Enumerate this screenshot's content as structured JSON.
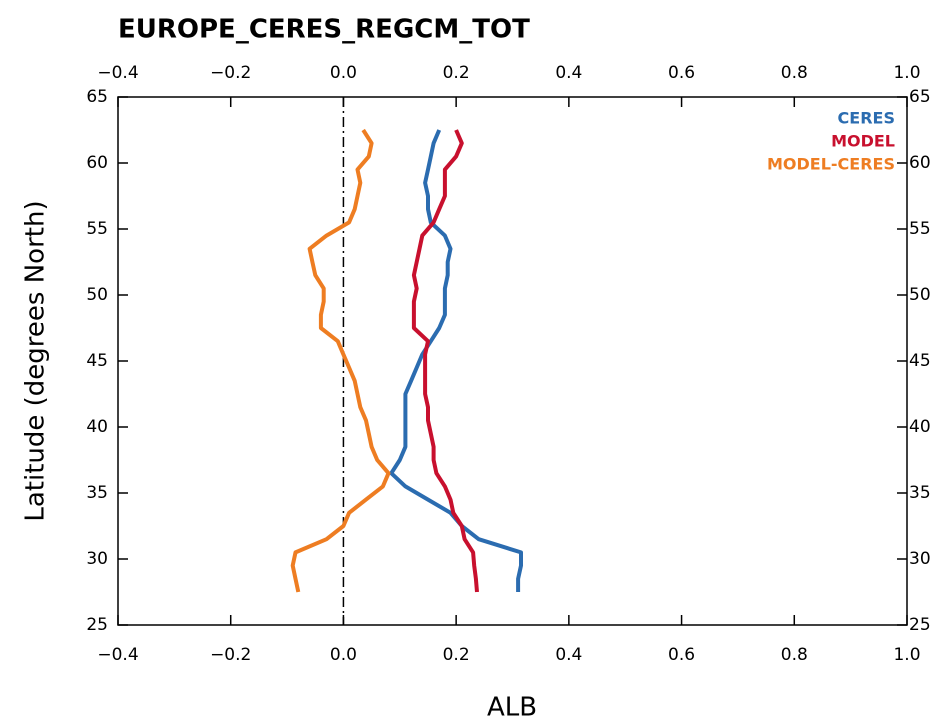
{
  "chart_data": {
    "type": "line",
    "title": "EUROPE_CERES_REGCM_TOT",
    "x_label": "ALB",
    "y_label": "Latitude (degrees North)",
    "xlim": [
      -0.4,
      1.0
    ],
    "xticks": [
      {
        "value": -0.4,
        "label": "−0.4"
      },
      {
        "value": -0.2,
        "label": "−0.2"
      },
      {
        "value": 0,
        "label": "0.0"
      },
      {
        "value": 0.2,
        "label": "0.2"
      },
      {
        "value": 0.4,
        "label": "0.4"
      },
      {
        "value": 0.6,
        "label": "0.6"
      },
      {
        "value": 0.8,
        "label": "0.8"
      },
      {
        "value": 1,
        "label": "1.0"
      }
    ],
    "ylim": [
      25,
      65
    ],
    "yticks": [
      25,
      30,
      35,
      40,
      45,
      50,
      55,
      60,
      65
    ],
    "reference_line": 0,
    "legend": "top-right",
    "latitudes": [
      27.5,
      28.5,
      29.5,
      30.5,
      31.5,
      32.5,
      33.5,
      34.5,
      35.5,
      36.5,
      37.5,
      38.5,
      39.5,
      40.5,
      41.5,
      42.5,
      43.5,
      44.5,
      45.5,
      46.5,
      47.5,
      48.5,
      49.5,
      50.5,
      51.5,
      52.5,
      53.5,
      54.5,
      55.5,
      56.5,
      57.5,
      58.5,
      59.5,
      60.5,
      61.5,
      62.5
    ],
    "series": [
      {
        "name": "CERES",
        "color": "#2b6cb0",
        "values": [
          0.31,
          0.31,
          0.315,
          0.315,
          0.24,
          0.21,
          0.19,
          0.15,
          0.11,
          0.085,
          0.1,
          0.11,
          0.11,
          0.11,
          0.11,
          0.11,
          0.12,
          0.13,
          0.14,
          0.155,
          0.17,
          0.18,
          0.18,
          0.18,
          0.185,
          0.185,
          0.19,
          0.18,
          0.155,
          0.15,
          0.15,
          0.145,
          0.15,
          0.155,
          0.16,
          0.17
        ]
      },
      {
        "name": "MODEL",
        "color": "#c8102e",
        "values": [
          0.237,
          0.235,
          0.232,
          0.23,
          0.215,
          0.21,
          0.195,
          0.19,
          0.18,
          0.165,
          0.16,
          0.16,
          0.155,
          0.15,
          0.15,
          0.145,
          0.145,
          0.145,
          0.145,
          0.15,
          0.125,
          0.125,
          0.125,
          0.13,
          0.125,
          0.13,
          0.135,
          0.14,
          0.16,
          0.17,
          0.18,
          0.18,
          0.18,
          0.2,
          0.21,
          0.2
        ]
      },
      {
        "name": "MODEL-CERES",
        "color": "#ee7d22",
        "values": [
          -0.08,
          -0.085,
          -0.09,
          -0.085,
          -0.03,
          0.0,
          0.01,
          0.04,
          0.07,
          0.08,
          0.06,
          0.05,
          0.045,
          0.04,
          0.03,
          0.025,
          0.02,
          0.01,
          0.0,
          -0.01,
          -0.04,
          -0.04,
          -0.035,
          -0.035,
          -0.05,
          -0.055,
          -0.06,
          -0.03,
          0.01,
          0.02,
          0.025,
          0.03,
          0.025,
          0.045,
          0.05,
          0.035
        ]
      }
    ]
  }
}
